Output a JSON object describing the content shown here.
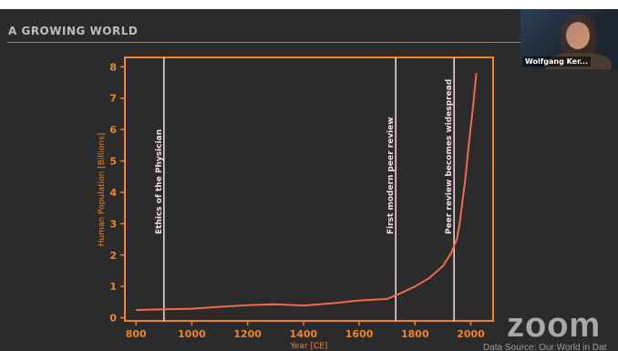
{
  "slide": {
    "title": "A GROWING WORLD",
    "source_note": "Data Source: Our World in Dat"
  },
  "video": {
    "participant_name": "Wolfgang Ker..."
  },
  "branding": {
    "logo_text": "zoom"
  },
  "colors": {
    "background": "#2b2b2b",
    "axis": "#f0842c",
    "line": "#f26b4f",
    "annotation": "#f3dede",
    "title": "#bdbdbd"
  },
  "chart_data": {
    "type": "line",
    "xlabel": "Year [CE]",
    "ylabel": "Human Population [Billions]",
    "xlim": [
      760,
      2080
    ],
    "ylim": [
      -0.1,
      8.3
    ],
    "x_ticks": [
      800,
      1000,
      1200,
      1400,
      1600,
      1800,
      2000
    ],
    "y_ticks": [
      0,
      1,
      2,
      3,
      4,
      5,
      6,
      7,
      8
    ],
    "grid": false,
    "series": [
      {
        "x": [
          800,
          900,
          1000,
          1100,
          1200,
          1300,
          1400,
          1500,
          1600,
          1700,
          1750,
          1800,
          1850,
          1900,
          1930,
          1950,
          1960,
          1970,
          1980,
          1990,
          2000,
          2010,
          2020
        ],
        "y": [
          0.25,
          0.27,
          0.29,
          0.35,
          0.4,
          0.43,
          0.39,
          0.46,
          0.55,
          0.6,
          0.79,
          1.0,
          1.26,
          1.65,
          2.07,
          2.5,
          3.0,
          3.7,
          4.4,
          5.3,
          6.1,
          6.9,
          7.8
        ]
      }
    ],
    "annotations": [
      {
        "x": 900,
        "label": "Ethics of the Physician"
      },
      {
        "x": 1731,
        "label": "First modern peer review"
      },
      {
        "x": 1940,
        "label": "Peer review becomes widespread"
      }
    ]
  }
}
